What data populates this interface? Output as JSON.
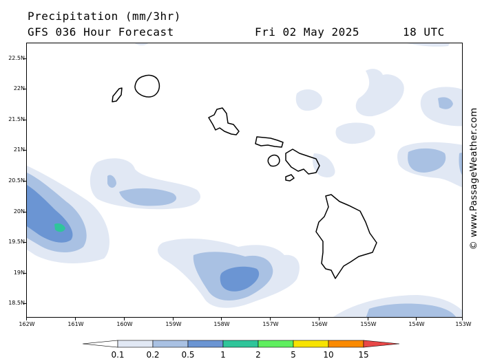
{
  "header": {
    "title": "Precipitation (mm/3hr)",
    "subtitle": "GFS 036 Hour Forecast",
    "date": "Fri 02 May 2025",
    "time": "18 UTC"
  },
  "credit": "© www.PassageWeather.com",
  "map": {
    "region": "Hawaiian Islands",
    "ocean_color": "#ffffff",
    "coastline_color": "#000000",
    "lat_labels": [
      "22.5N",
      "22N",
      "21.5N",
      "21N",
      "20.5N",
      "20N",
      "19.5N",
      "19N",
      "18.5N"
    ],
    "lon_labels": [
      "162W",
      "161W",
      "160W",
      "159W",
      "158W",
      "157W",
      "156W",
      "155W",
      "154W",
      "153W"
    ]
  },
  "legend": {
    "thresholds": [
      "0.1",
      "0.2",
      "0.5",
      "1",
      "2",
      "5",
      "10",
      "15"
    ],
    "colors": [
      "#ffffff",
      "#e1e8f4",
      "#a9c1e3",
      "#6b95d3",
      "#2fc59a",
      "#5fef5f",
      "#f7e300",
      "#fa8a00",
      "#e84848"
    ]
  }
}
